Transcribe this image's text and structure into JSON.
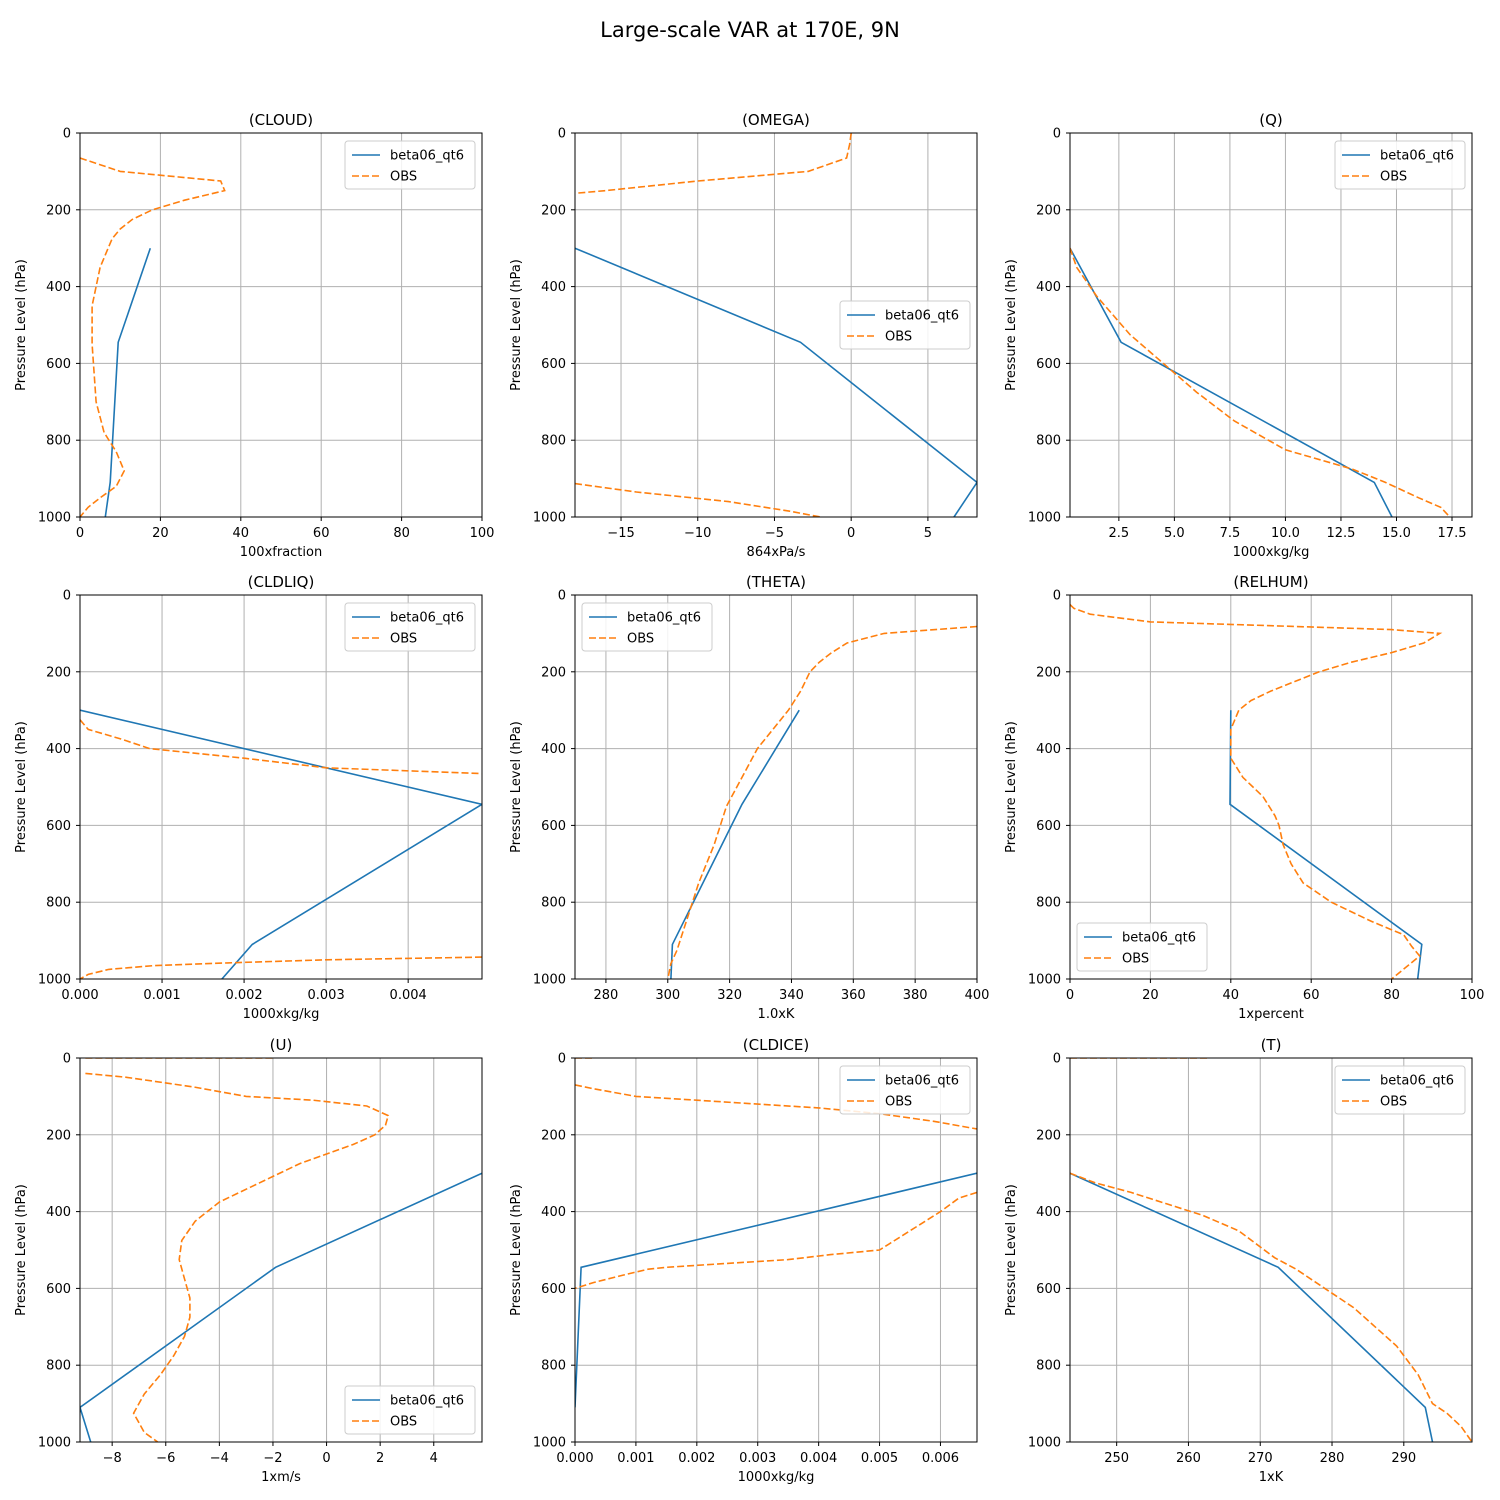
{
  "title": "Large-scale VAR at 170E, 9N",
  "ylabel": "Pressure Level (hPa)",
  "colors": {
    "model": "#1f77b4",
    "obs": "#ff7f0e",
    "grid": "#b0b0b0"
  },
  "chart_data": [
    {
      "type": "line",
      "title": "(CLOUD)",
      "xlabel": "100xfraction",
      "xlim": [
        0,
        100
      ],
      "ylim": [
        1000,
        0
      ],
      "grid": true,
      "legend": "upper-right",
      "xticks": [
        0,
        20,
        40,
        60,
        80,
        100
      ],
      "xtick_labels": [
        "0",
        "20",
        "40",
        "60",
        "80",
        "100"
      ],
      "yticks": [
        0,
        200,
        400,
        600,
        800,
        1000
      ],
      "ytick_labels": [
        "0",
        "200",
        "400",
        "600",
        "800",
        "1000"
      ],
      "series": [
        {
          "name": "beta06_qt6",
          "style": "solid",
          "x": [
            17.5,
            9.5,
            7.5,
            6.3
          ],
          "y": [
            300,
            545,
            910,
            1000
          ]
        },
        {
          "name": "OBS",
          "style": "dashed",
          "x": [
            0,
            10,
            35,
            36,
            26,
            18,
            13,
            10,
            8,
            7,
            5,
            4,
            3,
            3,
            4,
            6,
            9,
            11,
            9,
            5,
            2,
            0
          ],
          "y": [
            65,
            100,
            125,
            150,
            175,
            200,
            225,
            250,
            275,
            300,
            350,
            400,
            450,
            550,
            700,
            780,
            830,
            880,
            920,
            950,
            975,
            1000
          ]
        }
      ]
    },
    {
      "type": "line",
      "title": "(OMEGA)",
      "xlabel": "864xPa/s",
      "xlim": [
        -18,
        8.2
      ],
      "ylim": [
        1000,
        0
      ],
      "grid": true,
      "legend": "center-right",
      "xticks": [
        -15,
        -10,
        -5,
        0,
        5
      ],
      "xtick_labels": [
        "−15",
        "−10",
        "−5",
        "0",
        "5"
      ],
      "yticks": [
        0,
        200,
        400,
        600,
        800,
        1000
      ],
      "ytick_labels": [
        "0",
        "200",
        "400",
        "600",
        "800",
        "1000"
      ],
      "series": [
        {
          "name": "beta06_qt6",
          "style": "solid",
          "x": [
            -18,
            -3.3,
            8.2,
            6.7
          ],
          "y": [
            300,
            545,
            910,
            1000
          ]
        },
        {
          "name": "OBS",
          "style": "dashed",
          "segments": [
            {
              "x": [
                0,
                -0.1,
                -0.3,
                -2.8,
                -10,
                -16,
                -18
              ],
              "y": [
                0,
                30,
                65,
                100,
                125,
                150,
                157
              ]
            },
            {
              "x": [
                -18,
                -14,
                -8,
                -4,
                -2
              ],
              "y": [
                913,
                935,
                960,
                985,
                1000
              ]
            }
          ]
        }
      ]
    },
    {
      "type": "line",
      "title": "(Q)",
      "xlabel": "1000xkg/kg",
      "xlim": [
        0.3,
        18.4
      ],
      "ylim": [
        1000,
        0
      ],
      "grid": true,
      "legend": "upper-right",
      "xticks": [
        2.5,
        5.0,
        7.5,
        10.0,
        12.5,
        15.0,
        17.5
      ],
      "xtick_labels": [
        "2.5",
        "5.0",
        "7.5",
        "10.0",
        "12.5",
        "15.0",
        "17.5"
      ],
      "yticks": [
        0,
        200,
        400,
        600,
        800,
        1000
      ],
      "ytick_labels": [
        "0",
        "200",
        "400",
        "600",
        "800",
        "1000"
      ],
      "series": [
        {
          "name": "beta06_qt6",
          "style": "solid",
          "x": [
            0.3,
            2.6,
            14,
            14.8
          ],
          "y": [
            300,
            545,
            910,
            1000
          ]
        },
        {
          "name": "OBS",
          "style": "dashed",
          "x": [
            0.3,
            0.6,
            1.5,
            3,
            4.5,
            6,
            7.7,
            10,
            13,
            14.5,
            16,
            17,
            17.4
          ],
          "y": [
            300,
            350,
            425,
            525,
            600,
            675,
            750,
            825,
            875,
            910,
            950,
            975,
            1000
          ]
        }
      ]
    },
    {
      "type": "line",
      "title": "(CLDLIQ)",
      "xlabel": "1000xkg/kg",
      "xlim": [
        0,
        0.0049
      ],
      "ylim": [
        1000,
        0
      ],
      "grid": true,
      "legend": "upper-right",
      "xticks": [
        0,
        0.001,
        0.002,
        0.003,
        0.004
      ],
      "xtick_labels": [
        "0.000",
        "0.001",
        "0.002",
        "0.003",
        "0.004"
      ],
      "yticks": [
        0,
        200,
        400,
        600,
        800,
        1000
      ],
      "ytick_labels": [
        "0",
        "200",
        "400",
        "600",
        "800",
        "1000"
      ],
      "series": [
        {
          "name": "beta06_qt6",
          "style": "solid",
          "x": [
            0,
            0.0049,
            0.0021,
            0.00173
          ],
          "y": [
            300,
            545,
            910,
            1000
          ]
        },
        {
          "name": "OBS",
          "style": "dashed",
          "segments": [
            {
              "x": [
                0,
                0.0001,
                0.0005,
                0.00085,
                0.002,
                0.003,
                0.0049
              ],
              "y": [
                325,
                350,
                375,
                400,
                425,
                450,
                465
              ]
            },
            {
              "x": [
                0.0049,
                0.003,
                0.0018,
                0.0009,
                0.00035,
                0.0001,
                0
              ],
              "y": [
                943,
                950,
                958,
                965,
                975,
                988,
                1000
              ]
            }
          ]
        }
      ]
    },
    {
      "type": "line",
      "title": "(THETA)",
      "xlabel": "1.0xK",
      "xlim": [
        270,
        400
      ],
      "ylim": [
        1000,
        0
      ],
      "grid": true,
      "legend": "upper-left",
      "xticks": [
        280,
        300,
        320,
        340,
        360,
        380,
        400
      ],
      "xtick_labels": [
        "280",
        "300",
        "320",
        "340",
        "360",
        "380",
        "400"
      ],
      "yticks": [
        0,
        200,
        400,
        600,
        800,
        1000
      ],
      "ytick_labels": [
        "0",
        "200",
        "400",
        "600",
        "800",
        "1000"
      ],
      "series": [
        {
          "name": "beta06_qt6",
          "style": "solid",
          "x": [
            342.5,
            324,
            301.5,
            301
          ],
          "y": [
            300,
            545,
            910,
            1000
          ]
        },
        {
          "name": "OBS",
          "style": "dashed",
          "x": [
            400,
            370,
            358,
            353,
            349,
            346,
            343,
            339,
            334,
            329,
            324,
            319,
            315,
            310,
            306,
            303,
            301,
            300
          ],
          "y": [
            82,
            100,
            125,
            150,
            175,
            200,
            250,
            300,
            350,
            400,
            475,
            550,
            650,
            750,
            850,
            925,
            960,
            1000
          ]
        }
      ]
    },
    {
      "type": "line",
      "title": "(RELHUM)",
      "xlabel": "1xpercent",
      "xlim": [
        0,
        100
      ],
      "ylim": [
        1000,
        0
      ],
      "grid": true,
      "legend": "lower-left",
      "xticks": [
        0,
        20,
        40,
        60,
        80,
        100
      ],
      "xtick_labels": [
        "0",
        "20",
        "40",
        "60",
        "80",
        "100"
      ],
      "yticks": [
        0,
        200,
        400,
        600,
        800,
        1000
      ],
      "ytick_labels": [
        "0",
        "200",
        "400",
        "600",
        "800",
        "1000"
      ],
      "series": [
        {
          "name": "beta06_qt6",
          "style": "solid",
          "x": [
            40,
            39.8,
            87.5,
            86.5
          ],
          "y": [
            300,
            545,
            910,
            1000
          ]
        },
        {
          "name": "OBS",
          "style": "dashed",
          "x": [
            0,
            1,
            5,
            20,
            50,
            80,
            92,
            88,
            80,
            70,
            62,
            56,
            50,
            45,
            42,
            40,
            40,
            43,
            48,
            51,
            52,
            53,
            55,
            58,
            65,
            75,
            83,
            85,
            87,
            80
          ],
          "y": [
            25,
            35,
            50,
            70,
            80,
            90,
            100,
            125,
            150,
            175,
            200,
            225,
            250,
            275,
            300,
            350,
            425,
            475,
            525,
            575,
            600,
            650,
            700,
            750,
            800,
            850,
            885,
            915,
            940,
            1000
          ]
        }
      ]
    },
    {
      "type": "line",
      "title": "(U)",
      "xlabel": "1xm/s",
      "xlim": [
        -9.2,
        5.8
      ],
      "ylim": [
        1000,
        0
      ],
      "grid": true,
      "legend": "lower-right",
      "xticks": [
        -8,
        -6,
        -4,
        -2,
        0,
        2,
        4
      ],
      "xtick_labels": [
        "−8",
        "−6",
        "−4",
        "−2",
        "0",
        "2",
        "4"
      ],
      "yticks": [
        0,
        200,
        400,
        600,
        800,
        1000
      ],
      "ytick_labels": [
        "0",
        "200",
        "400",
        "600",
        "800",
        "1000"
      ],
      "series": [
        {
          "name": "beta06_qt6",
          "style": "solid",
          "x": [
            5.8,
            -1.9,
            -9.2,
            -8.8
          ],
          "y": [
            300,
            545,
            910,
            1000
          ]
        },
        {
          "name": "OBS",
          "style": "dashed",
          "segments": [
            {
              "x": [
                -9,
                -2
              ],
              "y": [
                0,
                0
              ]
            },
            {
              "x": [
                -9,
                -7.5,
                -5,
                -3,
                -0.5,
                1.5,
                2.3,
                2.2,
                1.8,
                1,
                0,
                -1,
                -2.5,
                -4,
                -4.9,
                -5.4,
                -5.5,
                -5.3,
                -5.1,
                -5.1,
                -5.3,
                -5.7,
                -6.2,
                -6.8,
                -7.2,
                -7,
                -6.8,
                -6.3
              ],
              "y": [
                40,
                50,
                75,
                100,
                110,
                125,
                150,
                175,
                200,
                225,
                250,
                275,
                325,
                375,
                425,
                475,
                525,
                575,
                625,
                675,
                725,
                775,
                825,
                875,
                925,
                950,
                975,
                1000
              ]
            }
          ]
        }
      ]
    },
    {
      "type": "line",
      "title": "(CLDICE)",
      "xlabel": "1000xkg/kg",
      "xlim": [
        0,
        0.0066
      ],
      "ylim": [
        1000,
        0
      ],
      "grid": true,
      "legend": "upper-right",
      "xticks": [
        0,
        0.001,
        0.002,
        0.003,
        0.004,
        0.005,
        0.006
      ],
      "xtick_labels": [
        "0.000",
        "0.001",
        "0.002",
        "0.003",
        "0.004",
        "0.005",
        "0.006"
      ],
      "yticks": [
        0,
        200,
        400,
        600,
        800,
        1000
      ],
      "ytick_labels": [
        "0",
        "200",
        "400",
        "600",
        "800",
        "1000"
      ],
      "series": [
        {
          "name": "beta06_qt6",
          "style": "solid",
          "x": [
            0.0066,
            0.0001,
            0
          ],
          "y": [
            300,
            545,
            910
          ]
        },
        {
          "name": "OBS",
          "style": "dashed",
          "segments": [
            {
              "x": [
                0,
                0.0003
              ],
              "y": [
                0,
                0
              ]
            },
            {
              "x": [
                0,
                0.0003,
                0.001,
                0.002,
                0.003,
                0.004,
                0.005,
                0.0059,
                0.0066
              ],
              "y": [
                70,
                80,
                100,
                110,
                120,
                130,
                145,
                165,
                185
              ]
            },
            {
              "x": [
                0.0066,
                0.0063,
                0.006,
                0.0055,
                0.005,
                0.0042,
                0.0035,
                0.0025,
                0.0015,
                0.0012,
                0.0008,
                0.0003,
                0
              ],
              "y": [
                350,
                365,
                400,
                450,
                500,
                512,
                525,
                535,
                545,
                550,
                565,
                585,
                600
              ]
            }
          ]
        }
      ]
    },
    {
      "type": "line",
      "title": "(T)",
      "xlabel": "1xK",
      "xlim": [
        243.5,
        299.5
      ],
      "ylim": [
        1000,
        0
      ],
      "grid": true,
      "legend": "upper-right",
      "xticks": [
        250,
        260,
        270,
        280,
        290
      ],
      "xtick_labels": [
        "250",
        "260",
        "270",
        "280",
        "290"
      ],
      "yticks": [
        0,
        200,
        400,
        600,
        800,
        1000
      ],
      "ytick_labels": [
        "0",
        "200",
        "400",
        "600",
        "800",
        "1000"
      ],
      "series": [
        {
          "name": "beta06_qt6",
          "style": "solid",
          "x": [
            243.5,
            272.5,
            293,
            294
          ],
          "y": [
            300,
            545,
            910,
            1000
          ]
        },
        {
          "name": "OBS",
          "style": "dashed",
          "segments": [
            {
              "x": [
                243.5,
                263
              ],
              "y": [
                0,
                0
              ]
            },
            {
              "x": [
                243.5,
                247,
                252,
                257,
                262,
                267,
                272,
                275,
                279,
                283,
                286,
                289,
                292,
                294,
                296,
                298,
                299.5
              ],
              "y": [
                300,
                325,
                350,
                380,
                410,
                450,
                520,
                550,
                600,
                650,
                700,
                750,
                825,
                900,
                925,
                960,
                1000
              ]
            }
          ]
        }
      ]
    }
  ]
}
